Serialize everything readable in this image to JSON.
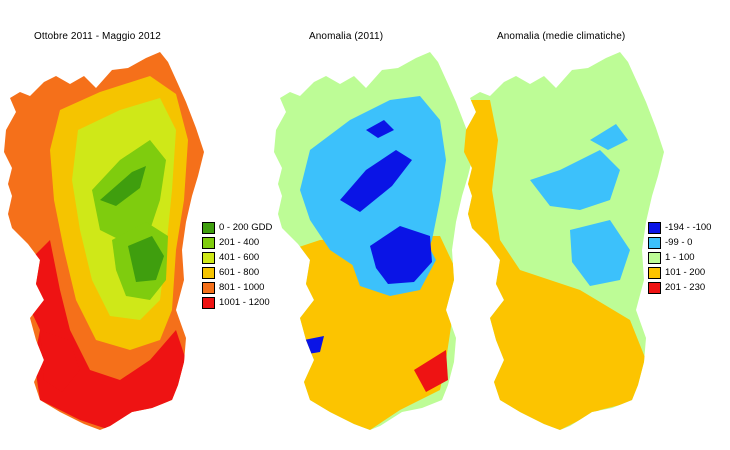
{
  "titles": {
    "map1": "Ottobre 2011 - Maggio 2012",
    "map2": "Anomalia (2011)",
    "map3": "Anomalia (medie climatiche)"
  },
  "legend_gdd": [
    {
      "label": "0 - 200 GDD",
      "color": "#3f9e0e"
    },
    {
      "label": "201 - 400",
      "color": "#7fcc0e"
    },
    {
      "label": "401 - 600",
      "color": "#cfe818"
    },
    {
      "label": "601 - 800",
      "color": "#f5c400"
    },
    {
      "label": "801 - 1000",
      "color": "#f5701a"
    },
    {
      "label": "1001 - 1200",
      "color": "#ee1313"
    }
  ],
  "legend_anomaly": [
    {
      "label": "-194 - -100",
      "color": "#0a14e6"
    },
    {
      "label": "-99 - 0",
      "color": "#3cc1fb"
    },
    {
      "label": "1 - 100",
      "color": "#bdfc96"
    },
    {
      "label": "101 - 200",
      "color": "#fcc400"
    },
    {
      "label": "201 - 230",
      "color": "#ee1313"
    }
  ]
}
